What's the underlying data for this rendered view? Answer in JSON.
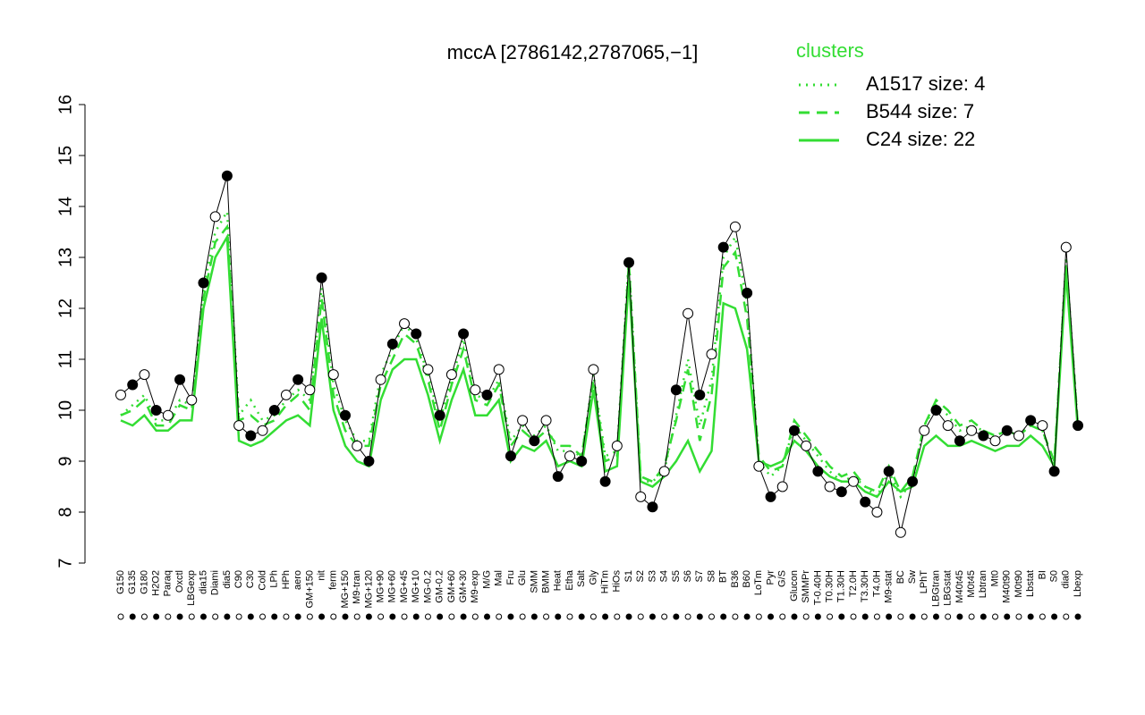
{
  "chart_data": {
    "type": "line",
    "title": "mccA [2786142,2787065,−1]",
    "legend_title": "clusters",
    "categories": [
      "G150",
      "G135",
      "G180",
      "H2O2",
      "Paraq",
      "Oxctl",
      "LBGexp",
      "dia15",
      "Diami",
      "dia5",
      "C90",
      "C30",
      "Cold",
      "LPh",
      "HPh",
      "aero",
      "GM+150",
      "nit",
      "ferm",
      "MG+150",
      "M9-tran",
      "MG+120",
      "MG+90",
      "MG+60",
      "MG+45",
      "MG+10",
      "MG-0.2",
      "GM-0.2",
      "GM+60",
      "GM+30",
      "M9-exp",
      "M/G",
      "Mal",
      "Fru",
      "Glu",
      "SMM",
      "BMM",
      "Heat",
      "Etha",
      "Salt",
      "Gly",
      "HiTm",
      "HiOs",
      "S1",
      "S2",
      "S3",
      "S4",
      "S5",
      "S6",
      "S7",
      "S8",
      "BT",
      "B36",
      "B60",
      "LoTm",
      "Pyr",
      "G/S",
      "Glucon",
      "SMMPr",
      "T-0.40H",
      "T0.30H",
      "T1.30H",
      "T2.0H",
      "T3.30H",
      "T4.0H",
      "M9-stat",
      "BC",
      "Sw",
      "LPhT",
      "LBGtran",
      "LBGstat",
      "M40t45",
      "M0t45",
      "Lbtran",
      "Mt0",
      "M40t90",
      "M0t90",
      "Lbstat",
      "BI",
      "S0",
      "dia0",
      "Lbexp"
    ],
    "values": [
      10.3,
      10.5,
      10.7,
      10.0,
      9.9,
      10.6,
      10.2,
      12.5,
      13.8,
      14.6,
      9.7,
      9.5,
      9.6,
      10.0,
      10.3,
      10.6,
      10.4,
      12.6,
      10.7,
      9.9,
      9.3,
      9.0,
      10.6,
      11.3,
      11.7,
      11.5,
      10.8,
      9.9,
      10.7,
      11.5,
      10.4,
      10.3,
      10.8,
      9.1,
      9.8,
      9.4,
      9.8,
      8.7,
      9.1,
      9.0,
      10.8,
      8.6,
      9.3,
      12.9,
      8.3,
      8.1,
      8.8,
      10.4,
      11.9,
      10.3,
      11.1,
      13.2,
      13.6,
      12.3,
      8.9,
      8.3,
      8.5,
      9.6,
      9.3,
      8.8,
      8.5,
      8.4,
      8.6,
      8.2,
      8.0,
      8.8,
      7.6,
      8.6,
      9.6,
      10.0,
      9.7,
      9.4,
      9.6,
      9.5,
      9.4,
      9.6,
      9.5,
      9.8,
      9.7,
      8.8,
      13.2,
      9.7
    ],
    "series": [
      {
        "name": "A1517 size: 4",
        "color": "#33dd33",
        "dash": "dotted",
        "values": [
          9.9,
          10.1,
          10.3,
          9.8,
          9.8,
          10.2,
          10.1,
          12.4,
          13.5,
          13.9,
          9.9,
          10.2,
          9.8,
          9.9,
          10.2,
          10.4,
          10.2,
          12.4,
          10.5,
          9.8,
          9.4,
          9.4,
          10.7,
          11.2,
          11.7,
          11.4,
          10.7,
          9.8,
          10.6,
          11.4,
          10.3,
          10.2,
          10.6,
          9.4,
          9.7,
          9.5,
          9.7,
          9.2,
          9.2,
          9.1,
          10.7,
          9.1,
          9.2,
          13.0,
          8.6,
          8.6,
          8.8,
          9.9,
          11.0,
          9.7,
          10.6,
          13.0,
          13.4,
          12.1,
          9.0,
          8.7,
          8.9,
          9.7,
          9.4,
          9.1,
          8.8,
          8.6,
          8.7,
          8.5,
          8.3,
          8.8,
          8.3,
          8.6,
          9.7,
          10.1,
          9.9,
          9.6,
          9.7,
          9.6,
          9.5,
          9.6,
          9.5,
          9.7,
          9.6,
          8.9,
          13.0,
          9.7
        ]
      },
      {
        "name": "B544 size: 7",
        "color": "#33dd33",
        "dash": "dashed",
        "values": [
          9.9,
          10.0,
          10.2,
          9.7,
          9.7,
          10.1,
          10.0,
          12.2,
          13.3,
          13.6,
          9.8,
          9.9,
          9.7,
          9.8,
          10.1,
          10.3,
          10.0,
          12.2,
          10.3,
          9.6,
          9.3,
          9.3,
          10.5,
          11.0,
          11.5,
          11.3,
          10.6,
          9.6,
          10.5,
          11.2,
          10.2,
          10.1,
          10.5,
          9.3,
          9.6,
          9.4,
          9.6,
          9.3,
          9.3,
          9.1,
          10.6,
          9.0,
          9.1,
          12.9,
          8.7,
          8.6,
          8.9,
          9.8,
          10.8,
          9.4,
          10.3,
          12.8,
          13.1,
          11.8,
          9.1,
          8.8,
          8.9,
          9.8,
          9.5,
          9.2,
          8.9,
          8.7,
          8.8,
          8.5,
          8.4,
          8.9,
          8.4,
          8.7,
          9.7,
          10.2,
          10.0,
          9.7,
          9.8,
          9.6,
          9.5,
          9.6,
          9.5,
          9.7,
          9.6,
          9.0,
          12.9,
          9.7
        ]
      },
      {
        "name": "C24 size: 22",
        "color": "#33dd33",
        "dash": "solid",
        "values": [
          9.8,
          9.7,
          9.9,
          9.6,
          9.6,
          9.8,
          9.8,
          12.0,
          13.0,
          13.4,
          9.4,
          9.3,
          9.4,
          9.6,
          9.8,
          9.9,
          9.7,
          11.8,
          10.0,
          9.3,
          9.0,
          8.9,
          10.2,
          10.8,
          11.0,
          11.0,
          10.3,
          9.4,
          10.2,
          10.8,
          9.9,
          9.9,
          10.2,
          9.0,
          9.3,
          9.2,
          9.4,
          8.9,
          9.0,
          8.9,
          10.4,
          8.8,
          8.9,
          12.6,
          8.6,
          8.5,
          8.7,
          9.0,
          9.4,
          8.8,
          9.2,
          12.1,
          12.0,
          11.2,
          9.0,
          8.9,
          9.0,
          9.4,
          9.2,
          8.9,
          8.7,
          8.6,
          8.6,
          8.4,
          8.3,
          8.6,
          8.4,
          8.5,
          9.3,
          9.5,
          9.3,
          9.3,
          9.4,
          9.3,
          9.2,
          9.3,
          9.3,
          9.5,
          9.3,
          8.9,
          12.7,
          9.6
        ]
      }
    ],
    "ylim": [
      7,
      16
    ],
    "yticks": [
      7,
      8,
      9,
      10,
      11,
      12,
      13,
      14,
      15,
      16
    ]
  }
}
